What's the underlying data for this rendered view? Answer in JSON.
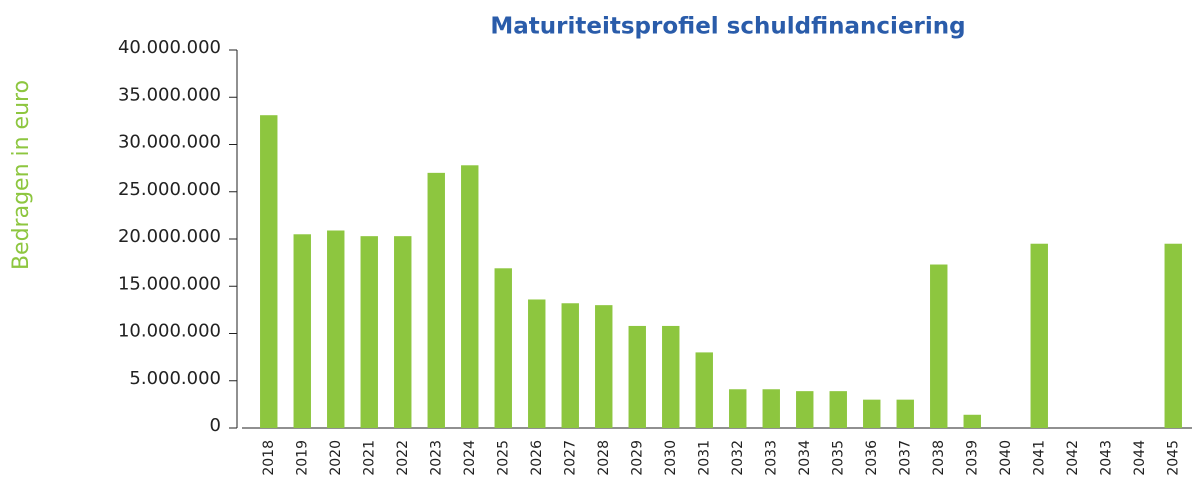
{
  "chart_data": {
    "type": "bar",
    "title": "Maturiteitsprofiel schuldfinanciering",
    "y_label": "Bedragen in euro",
    "categories": [
      "2018",
      "2019",
      "2020",
      "2021",
      "2022",
      "2023",
      "2024",
      "2025",
      "2026",
      "2027",
      "2028",
      "2029",
      "2030",
      "2031",
      "2032",
      "2033",
      "2034",
      "2035",
      "2036",
      "2037",
      "2038",
      "2039",
      "2040",
      "2041",
      "2042",
      "2043",
      "2044",
      "2045"
    ],
    "values": [
      33100000,
      20500000,
      20900000,
      20300000,
      20300000,
      27000000,
      27800000,
      16900000,
      13600000,
      13200000,
      13000000,
      10800000,
      10800000,
      8000000,
      4100000,
      4100000,
      3900000,
      3900000,
      3000000,
      3000000,
      17300000,
      1400000,
      0,
      19500000,
      0,
      0,
      0,
      19500000
    ],
    "color": "#8dc63f",
    "ylim": [
      0,
      40000000
    ],
    "yticks": [
      {
        "value": 0,
        "label": "0"
      },
      {
        "value": 5000000,
        "label": "5.000.000"
      },
      {
        "value": 10000000,
        "label": "10.000.000"
      },
      {
        "value": 15000000,
        "label": "15.000.000"
      },
      {
        "value": 20000000,
        "label": "20.000.000"
      },
      {
        "value": 25000000,
        "label": "25.000.000"
      },
      {
        "value": 30000000,
        "label": "30.000.000"
      },
      {
        "value": 35000000,
        "label": "35.000.000"
      },
      {
        "value": 40000000,
        "label": "40.000.000"
      }
    ],
    "grid": false
  }
}
